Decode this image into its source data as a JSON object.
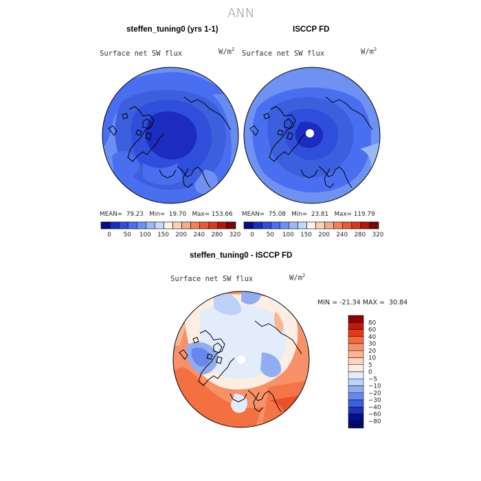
{
  "figure": {
    "season": "ANN",
    "panels": [
      {
        "title": "steffen_tuning0 (yrs 1-1)",
        "variable": "Surface net SW flux",
        "units": "W/m",
        "units_sup": "2",
        "mean_label": "MEAN=",
        "mean": "79.23",
        "min_label": "Min=",
        "min": "19.70",
        "max_label": "Max=",
        "max": "153.66"
      },
      {
        "title": "ISCCP FD",
        "variable": "Surface net SW flux",
        "units": "W/m",
        "units_sup": "2",
        "mean_label": "MEAN=",
        "mean": "75.08",
        "min_label": "Min=",
        "min": "23.81",
        "max_label": "Max=",
        "max": "119.79"
      }
    ],
    "diff_panel": {
      "title": "steffen_tuning0 - ISCCP FD",
      "variable": "Surface net SW flux",
      "units": "W/m",
      "units_sup": "2",
      "min_label": "MIN =",
      "min": "-21.34",
      "max_label": "MAX =",
      "max": "30.84"
    }
  },
  "colorbar_abs": {
    "levels": [
      0,
      25,
      50,
      75,
      100,
      125,
      150,
      175,
      200,
      220,
      240,
      260,
      280,
      300,
      320
    ],
    "tick_labels": [
      "0",
      "50",
      "100",
      "150",
      "200",
      "240",
      "280",
      "320"
    ],
    "colors": [
      "#0a0a86",
      "#1c2cc0",
      "#2f4edb",
      "#4a6ef0",
      "#6f92f2",
      "#9ab8f6",
      "#c4d8fa",
      "#fff2e2",
      "#fbd0b4",
      "#f8a985",
      "#f2805b",
      "#e85a35",
      "#d63a1e",
      "#b0180f",
      "#7d0505"
    ]
  },
  "colorbar_diff": {
    "levels": [
      "80",
      "60",
      "40",
      "30",
      "20",
      "10",
      "5",
      "0",
      "−5",
      "−10",
      "−20",
      "−30",
      "−40",
      "−60",
      "−80"
    ],
    "colors": [
      "#8b0000",
      "#bd1a0d",
      "#e23a18",
      "#f56a3a",
      "#f7916a",
      "#fab596",
      "#fcd6c0",
      "#fdeee3",
      "#e3ecfb",
      "#bdd1f6",
      "#91adf0",
      "#6688ea",
      "#3b5fdd",
      "#1c34b8",
      "#050f8c",
      "#020866"
    ]
  }
}
